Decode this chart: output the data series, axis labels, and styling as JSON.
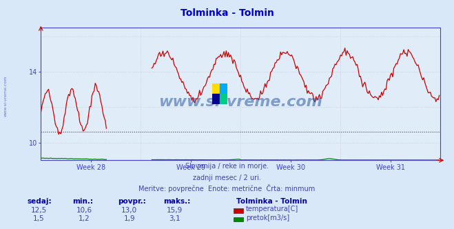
{
  "title": "Tolminka - Tolmin",
  "title_color": "#0000cc",
  "bg_color": "#d8e8f8",
  "plot_bg_color": "#e0ecf8",
  "grid_color": "#c8c8d8",
  "axis_color": "#4040cc",
  "tick_color": "#4040cc",
  "watermark_text": "www.si-vreme.com",
  "watermark_color": "#2050a0",
  "subtitle_lines": [
    "Slovenija / reke in morje.",
    "zadnji mesec / 2 uri.",
    "Meritve: povprečne  Enote: metrične  Črta: minmum"
  ],
  "subtitle_color": "#4040aa",
  "temp_color": "#cc0000",
  "flow_color": "#008800",
  "min_line_value_temp": 10.6,
  "legend_title": "Tolminka - Tolmin",
  "legend_items": [
    {
      "label": "temperatura[C]",
      "color": "#cc0000"
    },
    {
      "label": "pretok[m3/s]",
      "color": "#008800"
    }
  ],
  "table_headers": [
    "sedaj:",
    "min.:",
    "povpr.:",
    "maks.:"
  ],
  "table_rows": [
    {
      "values": [
        "12,5",
        "10,6",
        "13,0",
        "15,9"
      ]
    },
    {
      "values": [
        "1,5",
        "1,2",
        "1,9",
        "3,1"
      ]
    }
  ],
  "week_labels": [
    "Week 28",
    "Week 29",
    "Week 30",
    "Week 31"
  ],
  "logo_colors": [
    "#ffdd00",
    "#00aaff",
    "#000088",
    "#00cc88"
  ]
}
